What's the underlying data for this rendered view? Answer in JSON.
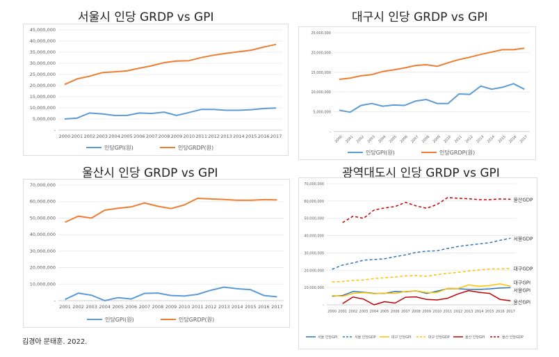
{
  "source": "김경아 문태훈. 2022.",
  "chart_data": [
    {
      "id": "seoul",
      "type": "line",
      "title": "서울시 인당 GRDP vs GPI",
      "categories": [
        "2000",
        "2001",
        "2002",
        "2003",
        "2004",
        "2005",
        "2006",
        "2007",
        "2008",
        "2009",
        "2010",
        "2011",
        "2012",
        "2013",
        "2014",
        "2015",
        "2016",
        "2017"
      ],
      "ylim": [
        0,
        45000000
      ],
      "yticks": [
        "-",
        "5,000,000",
        "10,000,000",
        "15,000,000",
        "20,000,000",
        "25,000,000",
        "30,000,000",
        "35,000,000",
        "40,000,000",
        "45,000,000"
      ],
      "series": [
        {
          "name": "인당GPI(원)",
          "color": "#5b9bd5",
          "values": [
            5000000,
            5400000,
            7700000,
            7300000,
            6600000,
            6600000,
            7700000,
            7500000,
            8100000,
            6600000,
            7900000,
            9300000,
            9300000,
            8900000,
            8900000,
            9200000,
            9700000,
            9900000
          ]
        },
        {
          "name": "인당GRDP(원)",
          "color": "#ed7d31",
          "values": [
            20500000,
            23000000,
            24200000,
            25800000,
            26200000,
            26600000,
            27800000,
            28900000,
            30300000,
            31000000,
            31200000,
            32600000,
            33700000,
            34500000,
            35200000,
            35900000,
            37300000,
            38500000
          ]
        }
      ]
    },
    {
      "id": "daegu",
      "type": "line",
      "title": "대구시 인당 GRDP vs GPI",
      "categories": [
        "2000",
        "2001",
        "2002",
        "2003",
        "2004",
        "2005",
        "2006",
        "2007",
        "2008",
        "2009",
        "2010",
        "2011",
        "2012",
        "2013",
        "2014",
        "2015",
        "2016",
        "2017"
      ],
      "ylim": [
        0,
        25000000
      ],
      "yticks": [
        "-",
        "5,000,000",
        "10,000,000",
        "15,000,000",
        "20,000,000",
        "25,000,000"
      ],
      "series": [
        {
          "name": "인당GPI(원)",
          "color": "#5b9bd5",
          "values": [
            5400000,
            4900000,
            6600000,
            7100000,
            6400000,
            6700000,
            6600000,
            7700000,
            8100000,
            7100000,
            7100000,
            9500000,
            9400000,
            11500000,
            10700000,
            11200000,
            12100000,
            10700000
          ]
        },
        {
          "name": "인당GRDP(원)",
          "color": "#ed7d31",
          "values": [
            13200000,
            13500000,
            14100000,
            14400000,
            15200000,
            15600000,
            16100000,
            16700000,
            16900000,
            16500000,
            17400000,
            18200000,
            18800000,
            19500000,
            20100000,
            20700000,
            20700000,
            21100000
          ]
        }
      ]
    },
    {
      "id": "ulsan",
      "type": "line",
      "title": "울산시 인당 GRDP vs GPI",
      "categories": [
        "2001",
        "2002",
        "2003",
        "2004",
        "2005",
        "2006",
        "2007",
        "2008",
        "2009",
        "2010",
        "2011",
        "2012",
        "2013",
        "2014",
        "2015",
        "2016",
        "2017"
      ],
      "ylim": [
        0,
        70000000
      ],
      "yticks": [
        "-",
        "10,000,000",
        "20,000,000",
        "30,000,000",
        "40,000,000",
        "50,000,000",
        "60,000,000",
        "70,000,000"
      ],
      "series": [
        {
          "name": "인당GPI(원)",
          "color": "#5b9bd5",
          "values": [
            700000,
            4500000,
            3300000,
            0,
            1800000,
            1000000,
            4400000,
            4600000,
            3100000,
            2800000,
            3800000,
            6300000,
            8200000,
            7200000,
            6600000,
            3100000,
            2300000
          ]
        },
        {
          "name": "인당GRDP(원)",
          "color": "#ed7d31",
          "values": [
            47500000,
            51200000,
            50000000,
            54800000,
            56000000,
            56800000,
            59200000,
            57200000,
            55800000,
            58000000,
            62000000,
            61600000,
            61300000,
            60800000,
            60800000,
            61200000,
            61000000
          ]
        }
      ]
    },
    {
      "id": "metro",
      "type": "line",
      "title": "광역대도시 인당 GRDP vs GPI",
      "categories": [
        "2000",
        "2001",
        "2002",
        "2003",
        "2004",
        "2005",
        "2006",
        "2007",
        "2008",
        "2009",
        "2010",
        "2011",
        "2012",
        "2013",
        "2014",
        "2015",
        "2016",
        "2017"
      ],
      "ylim": [
        0,
        70000000
      ],
      "yticks": [
        "-",
        "10,000,000",
        "20,000,000",
        "30,000,000",
        "40,000,000",
        "50,000,000",
        "60,000,000",
        "70,000,000"
      ],
      "series": [
        {
          "name": "서울 인당GPI",
          "color": "#2e75b6",
          "dash": false,
          "end_label": "서울GPI",
          "values": [
            5000000,
            5400000,
            7700000,
            7300000,
            6600000,
            6600000,
            7700000,
            7500000,
            8100000,
            6600000,
            7900000,
            9300000,
            9300000,
            8900000,
            8900000,
            9200000,
            9700000,
            9900000
          ]
        },
        {
          "name": "서울 인당GDP",
          "color": "#2e75b6",
          "dash": true,
          "end_label": "서울GDP",
          "values": [
            20500000,
            23000000,
            24200000,
            25800000,
            26200000,
            26600000,
            27800000,
            28900000,
            30300000,
            31000000,
            31200000,
            32600000,
            33700000,
            34500000,
            35200000,
            35900000,
            37300000,
            38500000
          ]
        },
        {
          "name": "대구 인당GPI",
          "color": "#ffc000",
          "dash": false,
          "end_label": "대구GPI",
          "values": [
            5400000,
            4900000,
            6600000,
            7100000,
            6400000,
            6700000,
            6600000,
            7700000,
            8100000,
            7100000,
            7100000,
            9500000,
            9400000,
            11500000,
            10700000,
            11200000,
            12100000,
            10700000
          ]
        },
        {
          "name": "대구 인당GDP",
          "color": "#ffc000",
          "dash": true,
          "end_label": "대구GDP",
          "values": [
            13200000,
            13500000,
            14100000,
            14400000,
            15200000,
            15600000,
            16100000,
            16700000,
            16900000,
            16500000,
            17400000,
            18200000,
            18800000,
            19500000,
            20100000,
            20700000,
            20700000,
            21100000
          ]
        },
        {
          "name": "울산 인당GPI",
          "color": "#c00000",
          "dash": false,
          "end_label": "울산GPI",
          "values": [
            null,
            700000,
            4500000,
            3300000,
            0,
            1800000,
            1000000,
            4400000,
            4600000,
            3100000,
            2800000,
            3800000,
            6300000,
            8200000,
            7200000,
            6600000,
            3100000,
            2300000
          ]
        },
        {
          "name": "울산 인당GDP",
          "color": "#c00000",
          "dash": true,
          "end_label": "울산GDP",
          "values": [
            null,
            47500000,
            51200000,
            50000000,
            54800000,
            56000000,
            56800000,
            59200000,
            57200000,
            55800000,
            58000000,
            62000000,
            61600000,
            61300000,
            60800000,
            60800000,
            61200000,
            61000000
          ]
        }
      ]
    }
  ]
}
